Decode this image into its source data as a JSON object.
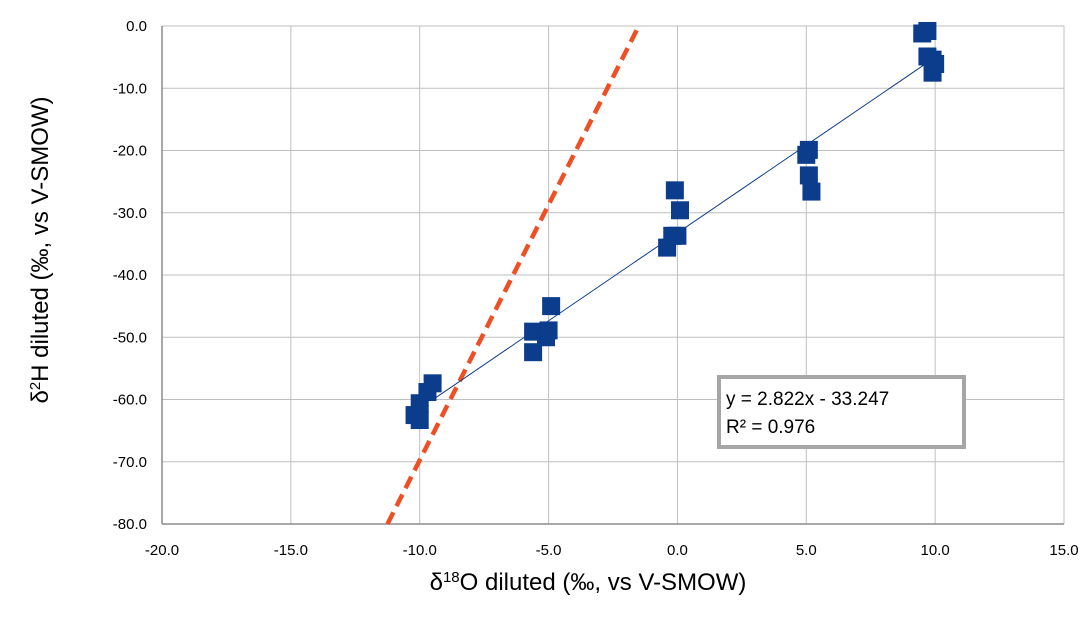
{
  "chart_data": {
    "type": "scatter",
    "xlabel": "δ18O diluted (‰, vs V-SMOW)",
    "ylabel": "δ2H diluted (‰, vs V-SMOW)",
    "xlim": [
      -20,
      15
    ],
    "ylim": [
      -80,
      0
    ],
    "x_ticks": [
      "-20.0",
      "-15.0",
      "-10.0",
      "-5.0",
      "0.0",
      "5.0",
      "10.0",
      "15.0"
    ],
    "y_ticks": [
      "0.0",
      "-10.0",
      "-20.0",
      "-30.0",
      "-40.0",
      "-50.0",
      "-60.0",
      "-70.0",
      "-80.0"
    ],
    "grid": true,
    "series": [
      {
        "points": [
          [
            -10.2,
            -62.5
          ],
          [
            -10.0,
            -63.3
          ],
          [
            -10.0,
            -60.6
          ],
          [
            -9.7,
            -58.8
          ],
          [
            -9.5,
            -57.4
          ],
          [
            -5.6,
            -52.4
          ],
          [
            -5.6,
            -49.1
          ],
          [
            -5.1,
            -50.0
          ],
          [
            -5.0,
            -48.9
          ],
          [
            -4.9,
            -45.0
          ],
          [
            -0.4,
            -35.6
          ],
          [
            -0.2,
            -33.7
          ],
          [
            0.0,
            -33.7
          ],
          [
            -0.1,
            -26.4
          ],
          [
            0.1,
            -29.6
          ],
          [
            5.0,
            -20.7
          ],
          [
            5.1,
            -19.9
          ],
          [
            5.1,
            -24.0
          ],
          [
            5.2,
            -26.6
          ],
          [
            9.5,
            -1.2
          ],
          [
            9.7,
            -0.8
          ],
          [
            9.7,
            -4.9
          ],
          [
            9.9,
            -5.4
          ],
          [
            9.9,
            -7.5
          ],
          [
            10.0,
            -6.1
          ]
        ],
        "color": "#0b3d8c"
      }
    ],
    "trendline": {
      "slope": 2.822,
      "intercept": -33.247,
      "x_range": [
        -9.4,
        10.2
      ],
      "color": "#0b3d8c",
      "equation": "y = 2.822x - 33.247",
      "r_squared": "R² = 0.976"
    },
    "reference_line": {
      "points": [
        [
          -11.25,
          -80
        ],
        [
          -1.5,
          0
        ]
      ],
      "color": "#f04e23",
      "style": "dashed"
    }
  }
}
